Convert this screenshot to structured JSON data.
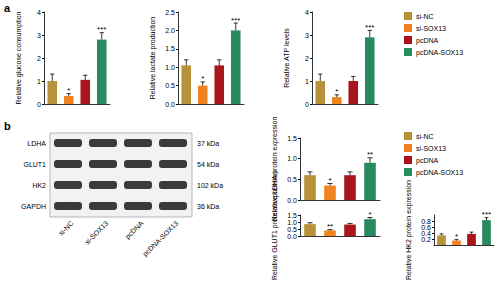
{
  "panel_labels": [
    "a",
    "b"
  ],
  "legend_entries": [
    {
      "name": "si-NC",
      "color": "#b8923a"
    },
    {
      "name": "si-SOX13",
      "color": "#f0831f"
    },
    {
      "name": "pcDNA",
      "color": "#a8151c"
    },
    {
      "name": "pcDNA-SOX13",
      "color": "#2a8a5f"
    }
  ],
  "blot": {
    "lanes": [
      "si-NC",
      "si-SOX13",
      "pcDNA",
      "pcDNA-SOX13"
    ],
    "rows": [
      {
        "protein": "LDHA",
        "size": "37 kDa"
      },
      {
        "protein": "GLUT1",
        "size": "54 kDa"
      },
      {
        "protein": "HK2",
        "size": "102 kDa"
      },
      {
        "protein": "GAPDH",
        "size": "36 kDa"
      }
    ]
  },
  "chart_data": [
    {
      "type": "bar",
      "ylabel": "Relative glucose consumption",
      "categories": [
        "si-NC",
        "si-SOX13",
        "pcDNA",
        "pcDNA-SOX13"
      ],
      "colors": [
        "#b8923a",
        "#f0831f",
        "#a8151c",
        "#2a8a5f"
      ],
      "values": [
        1.0,
        0.35,
        1.05,
        2.8
      ],
      "errors": [
        0.3,
        0.1,
        0.2,
        0.3
      ],
      "annotations": [
        null,
        "*",
        null,
        "***"
      ],
      "ylim": [
        0,
        4
      ],
      "yticks": [
        0,
        1,
        2,
        3,
        4
      ],
      "tick_labels": "y"
    },
    {
      "type": "bar",
      "ylabel": "Relative lactate production",
      "categories": [
        "si-NC",
        "si-SOX13",
        "pcDNA",
        "pcDNA-SOX13"
      ],
      "colors": [
        "#b8923a",
        "#f0831f",
        "#a8151c",
        "#2a8a5f"
      ],
      "values": [
        1.05,
        0.5,
        1.05,
        2.0
      ],
      "errors": [
        0.15,
        0.1,
        0.15,
        0.2
      ],
      "annotations": [
        null,
        "*",
        null,
        "***"
      ],
      "ylim": [
        0,
        2.5
      ],
      "yticks": [
        {
          "value": 0,
          "label": "0.0"
        },
        0.5,
        {
          "value": 1,
          "label": "1.0"
        },
        1.5,
        {
          "value": 2,
          "label": "2.0"
        },
        2.5
      ],
      "tick_labels": "y"
    },
    {
      "type": "bar",
      "ylabel": "Relative ATP levels",
      "categories": [
        "si-NC",
        "si-SOX13",
        "pcDNA",
        "pcDNA-SOX13"
      ],
      "colors": [
        "#b8923a",
        "#f0831f",
        "#a8151c",
        "#2a8a5f"
      ],
      "values": [
        1.0,
        0.3,
        1.0,
        2.9
      ],
      "errors": [
        0.3,
        0.1,
        0.2,
        0.3
      ],
      "annotations": [
        null,
        "*",
        null,
        "***"
      ],
      "ylim": [
        0,
        4
      ],
      "yticks": [
        0,
        1,
        2,
        3,
        4
      ],
      "tick_labels": "y"
    },
    {
      "type": "bar",
      "ylabel": "Relative LDHA protein expression",
      "categories": [
        "si-NC",
        "si-SOX13",
        "pcDNA",
        "pcDNA-SOX13"
      ],
      "colors": [
        "#b8923a",
        "#f0831f",
        "#a8151c",
        "#2a8a5f"
      ],
      "values": [
        0.6,
        0.35,
        0.6,
        0.9
      ],
      "errors": [
        0.08,
        0.05,
        0.08,
        0.12
      ],
      "annotations": [
        null,
        "*",
        null,
        "**"
      ],
      "ylim": [
        0,
        1.5
      ],
      "yticks": [
        {
          "value": 0,
          "label": "0.0"
        },
        0.5,
        {
          "value": 1,
          "label": "1.0"
        },
        1.5
      ],
      "tick_labels": "y"
    },
    {
      "type": "bar",
      "ylabel": "Relative GLUT1 protein expression",
      "categories": [
        "si-NC",
        "si-SOX13",
        "pcDNA",
        "pcDNA-SOX13"
      ],
      "colors": [
        "#b8923a",
        "#f0831f",
        "#a8151c",
        "#2a8a5f"
      ],
      "values": [
        0.85,
        0.4,
        0.82,
        1.2
      ],
      "errors": [
        0.1,
        0.06,
        0.08,
        0.12
      ],
      "annotations": [
        null,
        "**",
        null,
        "*"
      ],
      "ylim": [
        0,
        1.5
      ],
      "yticks": [
        {
          "value": 0,
          "label": "0.0"
        },
        0.5,
        {
          "value": 1,
          "label": "1.0"
        },
        1.5
      ],
      "tick_labels": "y"
    },
    {
      "type": "bar",
      "ylabel": "Relative HK2 protein expression",
      "categories": [
        "si-NC",
        "si-SOX13",
        "pcDNA",
        "pcDNA-SOX13"
      ],
      "colors": [
        "#b8923a",
        "#f0831f",
        "#a8151c",
        "#2a8a5f"
      ],
      "values": [
        0.32,
        0.15,
        0.37,
        0.83
      ],
      "errors": [
        0.05,
        0.03,
        0.06,
        0.08
      ],
      "annotations": [
        null,
        "*",
        null,
        "***"
      ],
      "ylim": [
        0,
        1
      ],
      "yticks": [
        {
          "value": 0,
          "label": "0.0"
        },
        0.2,
        0.4,
        0.6,
        0.8,
        {
          "value": 1,
          "label": "1.0"
        }
      ],
      "tick_labels": "y"
    }
  ]
}
